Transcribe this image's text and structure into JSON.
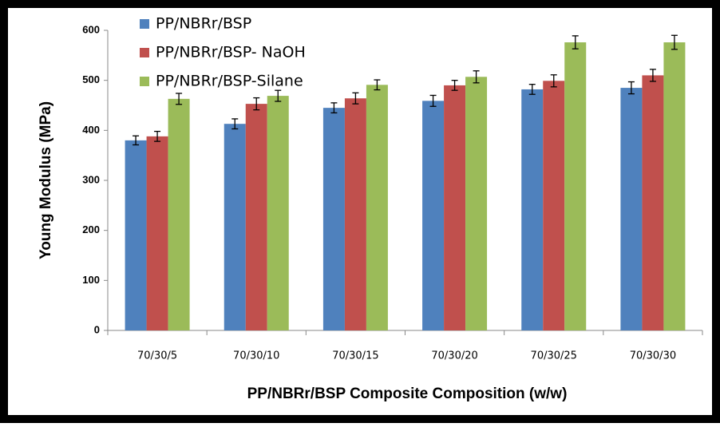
{
  "chart_data": {
    "type": "bar",
    "xlabel": "PP/NBRr/BSP Composite Composition (w/w)",
    "ylabel": "Young Modulus  (MPa)",
    "categories": [
      "70/30/5",
      "70/30/10",
      "70/30/15",
      "70/30/20",
      "70/30/25",
      "70/30/30"
    ],
    "series": [
      {
        "name": "PP/NBRr/BSP",
        "color": "#4f81bd",
        "values": [
          380,
          413,
          445,
          459,
          482,
          485
        ],
        "errors": [
          9,
          10,
          10,
          11,
          10,
          12
        ]
      },
      {
        "name": "PP/NBRr/BSP- NaOH",
        "color": "#c0504d",
        "values": [
          388,
          453,
          464,
          490,
          499,
          510
        ],
        "errors": [
          10,
          12,
          11,
          10,
          12,
          12
        ]
      },
      {
        "name": "PP/NBRr/BSP-Silane",
        "color": "#9bbb59",
        "values": [
          463,
          469,
          491,
          507,
          576,
          576
        ],
        "errors": [
          11,
          11,
          10,
          12,
          13,
          14
        ]
      }
    ],
    "ylim": [
      0,
      600
    ],
    "yticks": [
      0,
      100,
      200,
      300,
      400,
      500,
      600
    ],
    "grid": false,
    "legend": "top-left"
  }
}
